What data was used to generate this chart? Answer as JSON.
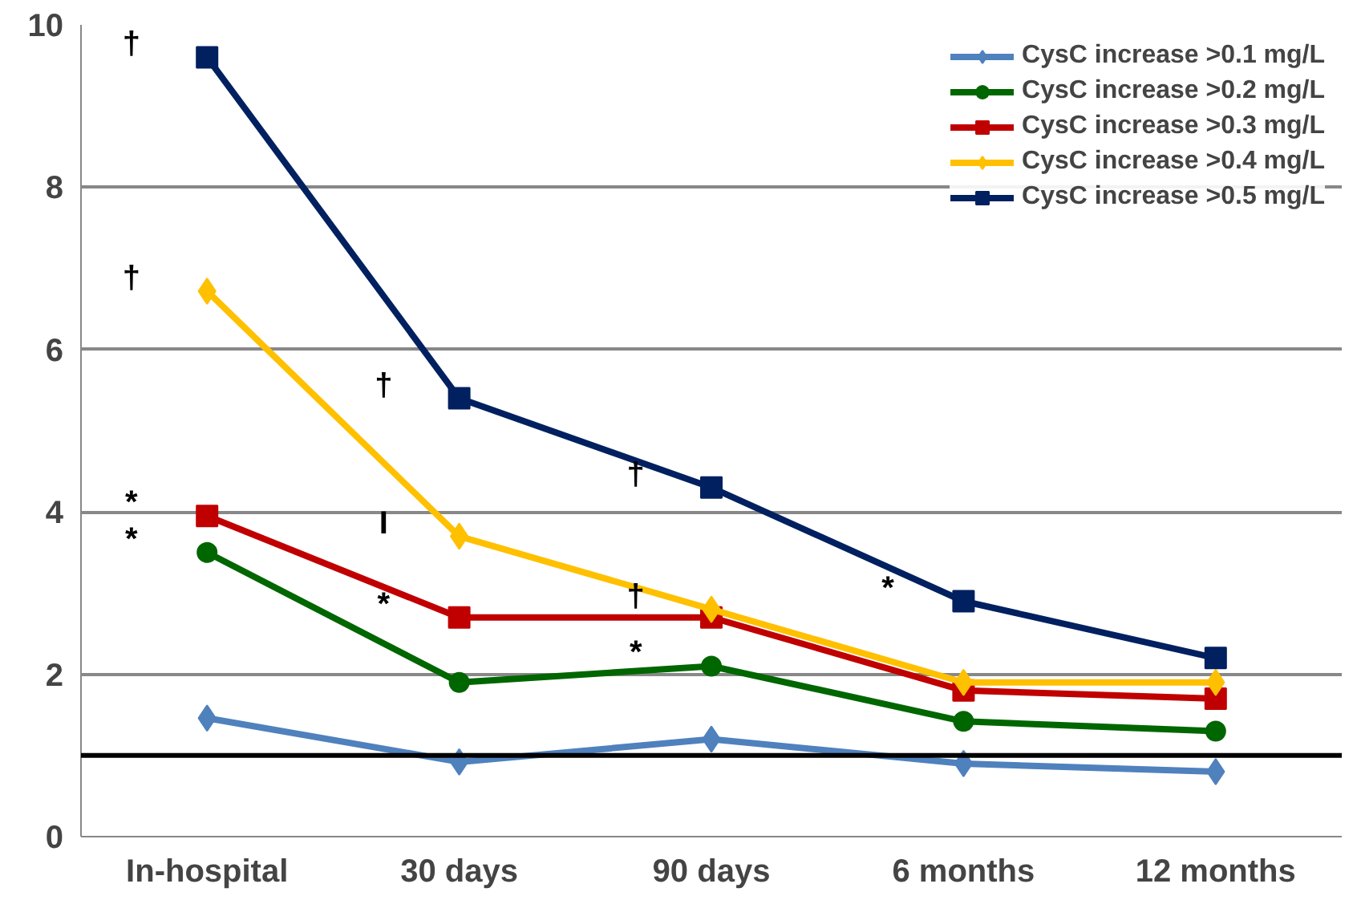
{
  "chart_data": {
    "type": "line",
    "categories": [
      "In-hospital",
      "30 days",
      "90 days",
      "6 months",
      "12 months"
    ],
    "series": [
      {
        "name": "CysC increase >0.1 mg/L",
        "color": "#4f81bd",
        "marker": "diamond",
        "values": [
          1.46,
          0.92,
          1.2,
          0.9,
          0.8
        ]
      },
      {
        "name": "CysC increase >0.2 mg/L",
        "color": "#006600",
        "marker": "circle",
        "values": [
          3.5,
          1.9,
          2.1,
          1.42,
          1.3
        ]
      },
      {
        "name": "CysC increase >0.3 mg/L",
        "color": "#c00000",
        "marker": "square",
        "values": [
          3.95,
          2.7,
          2.7,
          1.8,
          1.7
        ]
      },
      {
        "name": "CysC increase >0.4 mg/L",
        "color": "#ffc000",
        "marker": "diamond",
        "values": [
          6.72,
          3.7,
          2.8,
          1.9,
          1.9
        ]
      },
      {
        "name": "CysC increase >0.5 mg/L",
        "color": "#002060",
        "marker": "square",
        "values": [
          9.6,
          5.4,
          4.3,
          2.9,
          2.2
        ]
      }
    ],
    "ylim": [
      0,
      10
    ],
    "yticks": [
      0,
      2,
      4,
      6,
      8,
      10
    ],
    "grid": "y",
    "legend": "top right",
    "line_style": "solid",
    "ref_lines": [
      {
        "axis": "y",
        "value": 1,
        "color": "#000000"
      }
    ],
    "annotations": [
      {
        "text": "†",
        "x": "In-hospital",
        "y": 9.6
      },
      {
        "text": "†",
        "x": "In-hospital",
        "y": 6.72
      },
      {
        "text": "*",
        "x": "In-hospital",
        "y": 3.95
      },
      {
        "text": "*",
        "x": "In-hospital",
        "y": 3.5
      },
      {
        "text": "†",
        "x": "30 days",
        "y": 5.4
      },
      {
        "text": "I",
        "x": "30 days",
        "y": 3.7
      },
      {
        "text": "*",
        "x": "30 days",
        "y": 2.7
      },
      {
        "text": "†",
        "x": "90 days",
        "y": 4.3
      },
      {
        "text": "†",
        "x": "90 days",
        "y": 2.8
      },
      {
        "text": "*",
        "x": "90 days",
        "y": 2.1
      },
      {
        "text": "*",
        "x": "6 months",
        "y": 2.9
      }
    ]
  }
}
